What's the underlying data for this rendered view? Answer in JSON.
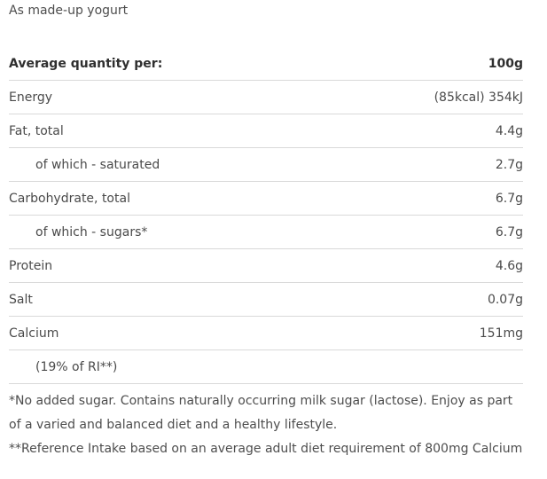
{
  "subtitle": "As made-up yogurt",
  "table": {
    "header": {
      "label": "Average quantity per:",
      "value": "100g"
    },
    "rows": [
      {
        "label": "Energy",
        "value": "(85kcal) 354kJ"
      },
      {
        "label": "Fat, total",
        "value": "4.4g"
      },
      {
        "label": "of which - saturated",
        "value": "2.7g"
      },
      {
        "label": "Carbohydrate, total",
        "value": "6.7g"
      },
      {
        "label": "of which - sugars*",
        "value": "6.7g"
      },
      {
        "label": "Protein",
        "value": "4.6g"
      },
      {
        "label": "Salt",
        "value": "0.07g"
      },
      {
        "label": "Calcium",
        "value": "151mg"
      },
      {
        "label": "(19% of RI**)",
        "value": ""
      }
    ]
  },
  "notes": {
    "sugar": "*No added sugar. Contains naturally occurring milk sugar (lactose). Enjoy as part of a varied and balanced diet and a healthy lifestyle.",
    "reference": "**Reference Intake based on an average adult diet requirement of 800mg Calcium"
  }
}
